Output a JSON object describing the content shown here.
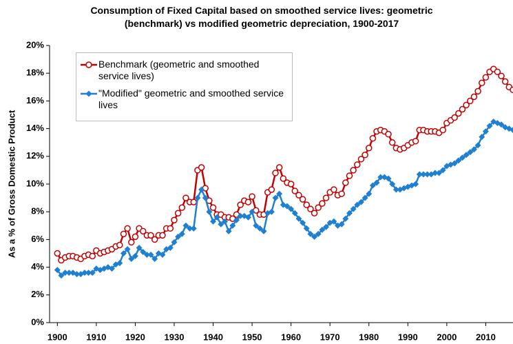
{
  "chart_data": {
    "type": "line",
    "title": "Consumption of Fixed Capital based on smoothed service lives: geometric (benchmark) vs modified geometric depreciation, 1900-2017",
    "y_label": "As a % of Gross Domestic Product",
    "x": [
      1900,
      1901,
      1902,
      1903,
      1904,
      1905,
      1906,
      1907,
      1908,
      1909,
      1910,
      1911,
      1912,
      1913,
      1914,
      1915,
      1916,
      1917,
      1918,
      1919,
      1920,
      1921,
      1922,
      1923,
      1924,
      1925,
      1926,
      1927,
      1928,
      1929,
      1930,
      1931,
      1932,
      1933,
      1934,
      1935,
      1936,
      1937,
      1938,
      1939,
      1940,
      1941,
      1942,
      1943,
      1944,
      1945,
      1946,
      1947,
      1948,
      1949,
      1950,
      1951,
      1952,
      1953,
      1954,
      1955,
      1956,
      1957,
      1958,
      1959,
      1960,
      1961,
      1962,
      1963,
      1964,
      1965,
      1966,
      1967,
      1968,
      1969,
      1970,
      1971,
      1972,
      1973,
      1974,
      1975,
      1976,
      1977,
      1978,
      1979,
      1980,
      1981,
      1982,
      1983,
      1984,
      1985,
      1986,
      1987,
      1988,
      1989,
      1990,
      1991,
      1992,
      1993,
      1994,
      1995,
      1996,
      1997,
      1998,
      1999,
      2000,
      2001,
      2002,
      2003,
      2004,
      2005,
      2006,
      2007,
      2008,
      2009,
      2010,
      2011,
      2012,
      2013,
      2014,
      2015,
      2016,
      2017
    ],
    "series": [
      {
        "name": "Benchmark (geometric and smoothed service lives)",
        "color": "#c00000",
        "marker": "circle",
        "values": [
          5.0,
          4.5,
          4.7,
          4.8,
          4.8,
          4.7,
          4.6,
          4.8,
          4.9,
          4.8,
          5.2,
          5.0,
          5.1,
          5.2,
          5.3,
          5.5,
          5.6,
          6.4,
          6.8,
          5.8,
          6.2,
          6.8,
          6.6,
          6.3,
          6.3,
          6.0,
          6.3,
          6.3,
          6.8,
          6.8,
          7.4,
          7.9,
          8.3,
          9.0,
          8.7,
          8.7,
          11.0,
          11.2,
          9.7,
          8.8,
          8.3,
          7.8,
          7.8,
          7.6,
          7.6,
          7.5,
          7.8,
          8.5,
          8.8,
          8.7,
          9.1,
          8.1,
          7.8,
          7.8,
          9.4,
          9.6,
          10.8,
          11.2,
          10.4,
          10.1,
          10.0,
          9.5,
          9.2,
          8.9,
          8.5,
          8.2,
          7.9,
          8.3,
          8.6,
          9.0,
          9.4,
          9.6,
          9.2,
          9.3,
          10.1,
          10.6,
          11.0,
          11.4,
          11.8,
          12.1,
          12.6,
          13.3,
          13.8,
          13.9,
          13.8,
          13.6,
          13.0,
          12.6,
          12.5,
          12.6,
          12.8,
          13.0,
          13.1,
          13.9,
          13.9,
          13.8,
          13.8,
          13.8,
          13.7,
          13.9,
          14.4,
          14.6,
          14.8,
          15.1,
          15.4,
          15.7,
          16.0,
          16.3,
          16.7,
          17.3,
          17.7,
          18.1,
          18.3,
          18.1,
          17.8,
          17.4,
          17.0,
          16.8
        ]
      },
      {
        "name": "\"Modified\" geometric and smoothed service lives",
        "color": "#1f7fd0",
        "marker": "diamond",
        "values": [
          3.8,
          3.4,
          3.6,
          3.6,
          3.6,
          3.5,
          3.5,
          3.6,
          3.6,
          3.6,
          3.9,
          3.8,
          3.9,
          4.0,
          3.9,
          4.2,
          4.3,
          5.0,
          5.3,
          4.6,
          4.8,
          5.4,
          5.1,
          4.9,
          4.9,
          4.6,
          5.0,
          4.9,
          5.3,
          5.4,
          5.8,
          6.2,
          6.4,
          7.0,
          6.8,
          6.8,
          9.0,
          9.6,
          9.0,
          8.0,
          7.3,
          7.6,
          7.1,
          7.3,
          6.6,
          7.0,
          7.4,
          7.7,
          7.7,
          7.6,
          8.0,
          7.0,
          6.8,
          6.6,
          7.9,
          8.0,
          9.0,
          9.3,
          8.5,
          8.4,
          8.2,
          7.9,
          7.5,
          7.2,
          6.8,
          6.4,
          6.2,
          6.4,
          6.7,
          6.9,
          7.2,
          7.3,
          7.0,
          7.1,
          7.5,
          7.9,
          8.2,
          8.5,
          8.7,
          9.0,
          9.3,
          9.9,
          10.1,
          10.5,
          10.5,
          10.4,
          10.0,
          9.6,
          9.6,
          9.7,
          9.8,
          9.9,
          10.0,
          10.7,
          10.7,
          10.7,
          10.7,
          10.8,
          10.8,
          11.0,
          11.3,
          11.4,
          11.5,
          11.7,
          11.9,
          12.1,
          12.3,
          12.5,
          12.8,
          13.4,
          13.8,
          14.2,
          14.5,
          14.4,
          14.3,
          14.1,
          14.0,
          13.9
        ]
      }
    ],
    "xlim": [
      1898,
      2017
    ],
    "xticks": [
      1900,
      1910,
      1920,
      1930,
      1940,
      1950,
      1960,
      1970,
      1980,
      1990,
      2000,
      2010
    ],
    "ylim": [
      0,
      20
    ],
    "yticks": [
      {
        "value": 0,
        "label": "0%"
      },
      {
        "value": 2,
        "label": "2%"
      },
      {
        "value": 4,
        "label": "4%"
      },
      {
        "value": 6,
        "label": "6%"
      },
      {
        "value": 8,
        "label": "8%"
      },
      {
        "value": 10,
        "label": "10%"
      },
      {
        "value": 12,
        "label": "12%"
      },
      {
        "value": 14,
        "label": "14%"
      },
      {
        "value": 16,
        "label": "16%"
      },
      {
        "value": 18,
        "label": "18%"
      },
      {
        "value": 20,
        "label": "20%"
      }
    ],
    "grid": false
  }
}
